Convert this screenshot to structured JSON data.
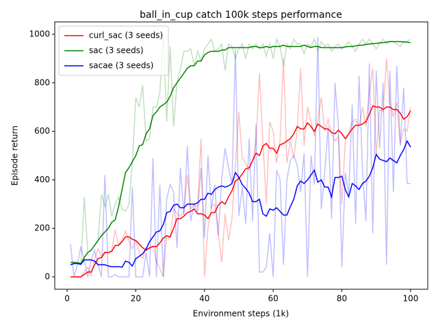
{
  "chart_data": {
    "type": "line",
    "title": "ball_in_cup catch 100k steps performance",
    "x_label": "Environment steps (1k)",
    "y_label": "Episode return",
    "legend": "upper left",
    "raw_alpha": 0.25,
    "xlim": [
      -3.6,
      105
    ],
    "ylim": [
      -51,
      1051
    ],
    "xticks": [
      0,
      20,
      40,
      60,
      80,
      100
    ],
    "yticks": [
      0,
      200,
      400,
      600,
      800,
      1000
    ],
    "x": [
      1,
      2,
      3,
      4,
      5,
      6,
      7,
      8,
      9,
      10,
      11,
      12,
      13,
      14,
      15,
      16,
      17,
      18,
      19,
      20,
      21,
      22,
      23,
      24,
      25,
      26,
      27,
      28,
      29,
      30,
      31,
      32,
      33,
      34,
      35,
      36,
      37,
      38,
      39,
      40,
      41,
      42,
      43,
      44,
      45,
      46,
      47,
      48,
      49,
      50,
      51,
      52,
      53,
      54,
      55,
      56,
      57,
      58,
      59,
      60,
      61,
      62,
      63,
      64,
      65,
      66,
      67,
      68,
      69,
      70,
      71,
      72,
      73,
      74,
      75,
      76,
      77,
      78,
      79,
      80,
      81,
      82,
      83,
      84,
      85,
      86,
      87,
      88,
      89,
      90,
      91,
      92,
      93,
      94,
      95,
      96,
      97,
      98,
      99,
      100
    ],
    "series": [
      {
        "name": "curl_sac (3 seeds)",
        "color": "#ff0000",
        "values": [
          0,
          0,
          0,
          0,
          10,
          20,
          20,
          50,
          75,
          80,
          100,
          100,
          105,
          130,
          130,
          145,
          165,
          165,
          155,
          150,
          135,
          120,
          110,
          120,
          125,
          125,
          140,
          160,
          170,
          165,
          200,
          240,
          240,
          250,
          265,
          270,
          280,
          260,
          260,
          255,
          240,
          265,
          265,
          295,
          310,
          300,
          330,
          355,
          395,
          405,
          425,
          445,
          450,
          480,
          510,
          500,
          540,
          550,
          530,
          530,
          510,
          545,
          550,
          560,
          570,
          590,
          620,
          610,
          610,
          635,
          620,
          600,
          630,
          620,
          610,
          610,
          595,
          590,
          605,
          590,
          570,
          590,
          610,
          625,
          625,
          630,
          640,
          670,
          705,
          700,
          700,
          690,
          700,
          700,
          690,
          690,
          675,
          650,
          660,
          685
        ],
        "raw_values": [
          0,
          0,
          0,
          0,
          20,
          40,
          5,
          75,
          115,
          85,
          105,
          100,
          110,
          195,
          130,
          155,
          190,
          150,
          115,
          150,
          100,
          75,
          120,
          115,
          130,
          65,
          35,
          0,
          170,
          160,
          280,
          260,
          250,
          270,
          420,
          280,
          300,
          290,
          570,
          0,
          200,
          290,
          300,
          180,
          60,
          260,
          150,
          240,
          460,
          680,
          490,
          470,
          440,
          480,
          550,
          840,
          560,
          300,
          640,
          600,
          470,
          560,
          900,
          470,
          560,
          490,
          610,
          860,
          540,
          700,
          640,
          580,
          650,
          740,
          600,
          650,
          590,
          560,
          580,
          300,
          560,
          590,
          640,
          650,
          620,
          700,
          620,
          760,
          860,
          500,
          690,
          680,
          900,
          720,
          660,
          720,
          550,
          610,
          600,
          700
        ]
      },
      {
        "name": "sac (3 seeds)",
        "color": "#008000",
        "values": [
          60,
          60,
          58,
          55,
          80,
          100,
          110,
          130,
          150,
          170,
          185,
          200,
          225,
          235,
          290,
          360,
          430,
          450,
          475,
          500,
          540,
          545,
          590,
          610,
          665,
          680,
          700,
          710,
          720,
          745,
          780,
          800,
          820,
          840,
          860,
          870,
          870,
          890,
          890,
          915,
          925,
          930,
          930,
          930,
          935,
          935,
          945,
          945,
          945,
          945,
          945,
          945,
          945,
          950,
          950,
          945,
          945,
          950,
          945,
          950,
          950,
          950,
          955,
          950,
          950,
          950,
          950,
          950,
          955,
          950,
          945,
          950,
          950,
          945,
          945,
          945,
          945,
          945,
          945,
          945,
          948,
          950,
          950,
          952,
          955,
          955,
          958,
          960,
          962,
          962,
          965,
          965,
          968,
          970,
          970,
          970,
          970,
          968,
          968,
          965
        ],
        "raw_values": [
          60,
          60,
          55,
          50,
          330,
          100,
          110,
          130,
          150,
          340,
          290,
          340,
          250,
          300,
          330,
          280,
          270,
          300,
          475,
          740,
          700,
          790,
          560,
          570,
          700,
          700,
          760,
          1000,
          640,
          950,
          620,
          800,
          860,
          930,
          930,
          940,
          870,
          930,
          890,
          940,
          960,
          980,
          930,
          940,
          960,
          850,
          960,
          950,
          900,
          940,
          960,
          900,
          960,
          940,
          960,
          940,
          960,
          910,
          960,
          900,
          980,
          950,
          870,
          960,
          940,
          980,
          960,
          960,
          920,
          960,
          950,
          980,
          930,
          970,
          950,
          960,
          930,
          950,
          960,
          940,
          950,
          970,
          950,
          930,
          960,
          980,
          960,
          980,
          960,
          940,
          960,
          980,
          960,
          970,
          970,
          960,
          950,
          970,
          970,
          980
        ]
      },
      {
        "name": "sacae (3 seeds)",
        "color": "#0000ff",
        "values": [
          50,
          55,
          55,
          52,
          70,
          70,
          70,
          65,
          50,
          50,
          50,
          45,
          42,
          42,
          42,
          40,
          65,
          60,
          45,
          75,
          85,
          95,
          115,
          145,
          165,
          185,
          190,
          215,
          265,
          270,
          295,
          300,
          285,
          285,
          300,
          300,
          300,
          305,
          320,
          320,
          345,
          340,
          360,
          370,
          375,
          370,
          375,
          385,
          430,
          410,
          380,
          365,
          345,
          310,
          310,
          320,
          260,
          250,
          280,
          275,
          285,
          270,
          255,
          255,
          290,
          320,
          375,
          395,
          385,
          400,
          420,
          440,
          390,
          400,
          370,
          370,
          330,
          410,
          410,
          415,
          360,
          330,
          385,
          375,
          360,
          385,
          395,
          415,
          450,
          505,
          485,
          480,
          475,
          490,
          480,
          470,
          500,
          525,
          560,
          535
        ],
        "raw_values": [
          135,
          0,
          50,
          125,
          70,
          0,
          70,
          110,
          50,
          0,
          420,
          0,
          0,
          10,
          0,
          0,
          0,
          0,
          370,
          0,
          0,
          0,
          100,
          0,
          490,
          0,
          380,
          0,
          320,
          380,
          350,
          120,
          450,
          250,
          540,
          230,
          300,
          270,
          450,
          160,
          500,
          280,
          380,
          170,
          400,
          530,
          450,
          380,
          940,
          250,
          370,
          220,
          570,
          230,
          630,
          20,
          20,
          40,
          180,
          0,
          440,
          400,
          50,
          400,
          480,
          500,
          460,
          350,
          510,
          0,
          500,
          380,
          990,
          280,
          430,
          620,
          240,
          800,
          620,
          40,
          430,
          340,
          710,
          220,
          830,
          440,
          230,
          880,
          180,
          850,
          530,
          800,
          50,
          850,
          350,
          870,
          540,
          780,
          385,
          385
        ]
      }
    ]
  }
}
